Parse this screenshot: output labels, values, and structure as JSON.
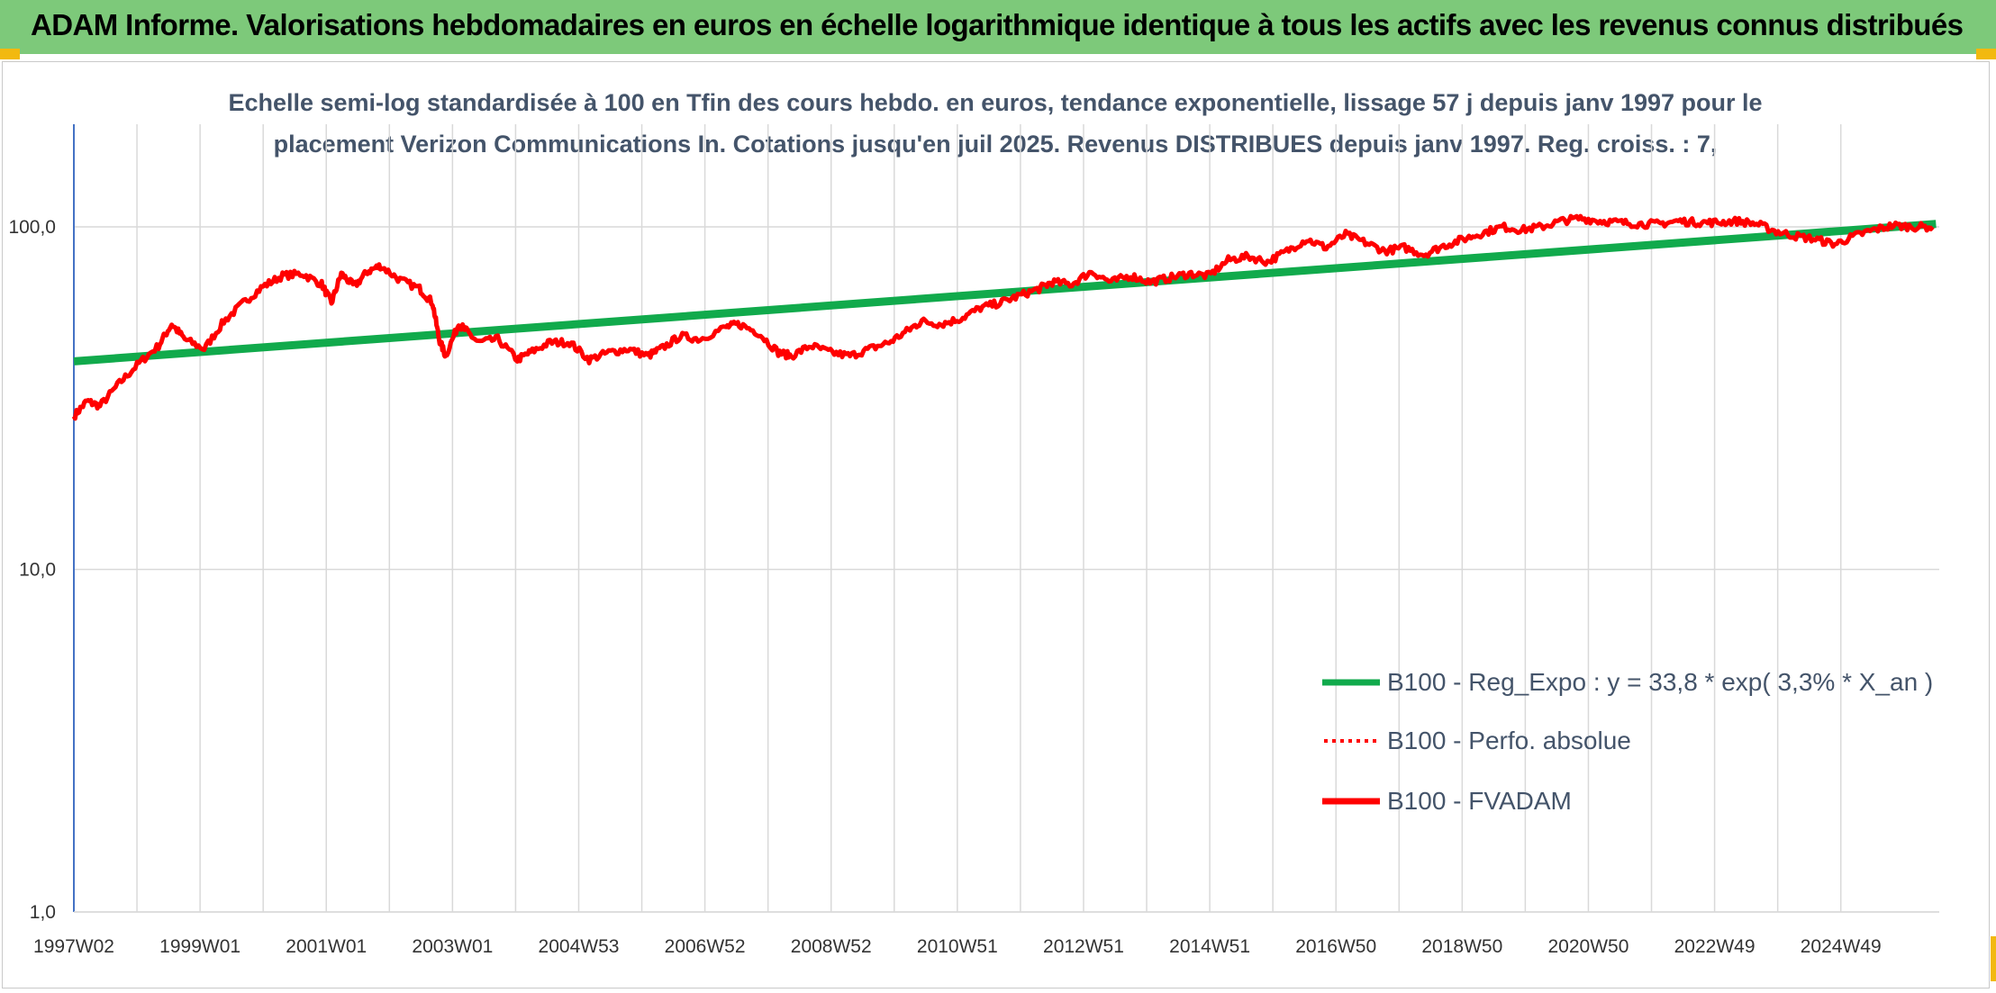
{
  "banner": {
    "title": "ADAM Informe. Valorisations hebdomadaires en euros en échelle logarithmique identique à tous les actifs avec les revenus connus distribués"
  },
  "colors": {
    "banner_bg": "#7dc97a",
    "regression": "#11aa4c",
    "series": "#ff0000",
    "grid": "#d9d9d9",
    "axis": "#4472c4"
  },
  "chart_data": {
    "type": "line",
    "subtitle": [
      "Echelle semi-log standardisée à 100 en Tfin des cours hebdo. en euros, tendance exponentielle, lissage 57 j depuis janv 1997 pour le",
      "placement Verizon Communications In. Cotations jusqu'en juil 2025. Revenus DISTRIBUES depuis janv 1997. Reg. croiss. : 7,"
    ],
    "y_scale": "log",
    "ylim": [
      1,
      200
    ],
    "xlim": [
      1997.0,
      2025.6
    ],
    "y_ticks": [
      {
        "value": 1,
        "label": "1,0"
      },
      {
        "value": 10,
        "label": "10,0"
      },
      {
        "value": 100,
        "label": "100,0"
      }
    ],
    "x_ticks": [
      "1997W02",
      "1999W01",
      "2001W01",
      "2003W01",
      "2004W53",
      "2006W52",
      "2008W52",
      "2010W51",
      "2012W51",
      "2014W51",
      "2016W50",
      "2018W50",
      "2020W50",
      "2022W49",
      "2024W49"
    ],
    "grid": true,
    "legend_position": "bottom-right",
    "legend": [
      {
        "label": "B100 - Reg_Expo : y = 33,8 * exp( 3,3% *  X_an )",
        "style": "solid-green"
      },
      {
        "label": "B100 - Perfo. absolue",
        "style": "dotted-red"
      },
      {
        "label": "B100 - FVADAM",
        "style": "solid-red"
      }
    ],
    "series": [
      {
        "name": "B100 - Reg_Expo : y = 33,8 * exp( 3,3% *  X_an )",
        "x": [
          1997.0,
          2025.55
        ],
        "values": [
          40.5,
          102.0
        ]
      },
      {
        "name": "B100 - FVADAM",
        "x": [
          1997.0,
          1997.2,
          1997.4,
          1997.7,
          1998.0,
          1998.3,
          1998.5,
          1998.7,
          1999.0,
          1999.3,
          1999.6,
          1999.9,
          2000.2,
          2000.5,
          2000.8,
          2000.95,
          2001.1,
          2001.3,
          2001.5,
          2001.7,
          2002.0,
          2002.3,
          2002.5,
          2002.6,
          2002.7,
          2002.9,
          2003.0,
          2003.2,
          2003.5,
          2003.8,
          2004.0,
          2004.3,
          2004.6,
          2004.9,
          2005.2,
          2005.5,
          2005.8,
          2006.0,
          2006.3,
          2006.6,
          2007.0,
          2007.2,
          2007.5,
          2007.8,
          2008.0,
          2008.3,
          2008.6,
          2008.9,
          2009.2,
          2009.5,
          2009.8,
          2010.0,
          2010.3,
          2010.6,
          2010.9,
          2011.2,
          2011.5,
          2011.8,
          2012.0,
          2012.3,
          2012.6,
          2012.9,
          2013.2,
          2013.5,
          2013.8,
          2014.1,
          2014.4,
          2014.7,
          2015.0,
          2015.3,
          2015.6,
          2015.9,
          2016.2,
          2016.5,
          2016.8,
          2017.1,
          2017.4,
          2017.7,
          2018.0,
          2018.3,
          2018.6,
          2018.9,
          2019.2,
          2019.5,
          2019.8,
          2020.1,
          2020.4,
          2020.7,
          2021.0,
          2021.3,
          2021.6,
          2021.9,
          2022.2,
          2022.5,
          2022.8,
          2023.1,
          2023.4,
          2023.7,
          2024.0,
          2024.3,
          2024.6,
          2024.9,
          2025.2,
          2025.5
        ],
        "values": [
          28,
          31,
          30,
          35,
          40,
          45,
          52,
          47,
          44,
          53,
          60,
          67,
          72,
          73,
          68,
          60,
          73,
          67,
          74,
          77,
          70,
          66,
          60,
          47,
          42,
          52,
          50,
          46,
          47,
          41,
          43,
          46,
          46,
          41,
          43,
          44,
          42,
          44,
          48,
          47,
          51,
          52,
          49,
          43,
          42,
          45,
          43,
          42,
          44,
          46,
          50,
          53,
          52,
          54,
          58,
          60,
          63,
          66,
          69,
          68,
          74,
          69,
          72,
          69,
          71,
          73,
          72,
          80,
          82,
          79,
          85,
          92,
          87,
          95,
          90,
          85,
          87,
          83,
          88,
          92,
          96,
          100,
          98,
          100,
          104,
          106,
          104,
          103,
          102,
          102,
          104,
          103,
          103,
          104,
          102,
          97,
          94,
          92,
          89,
          94,
          98,
          101,
          100,
          100
        ]
      }
    ]
  }
}
